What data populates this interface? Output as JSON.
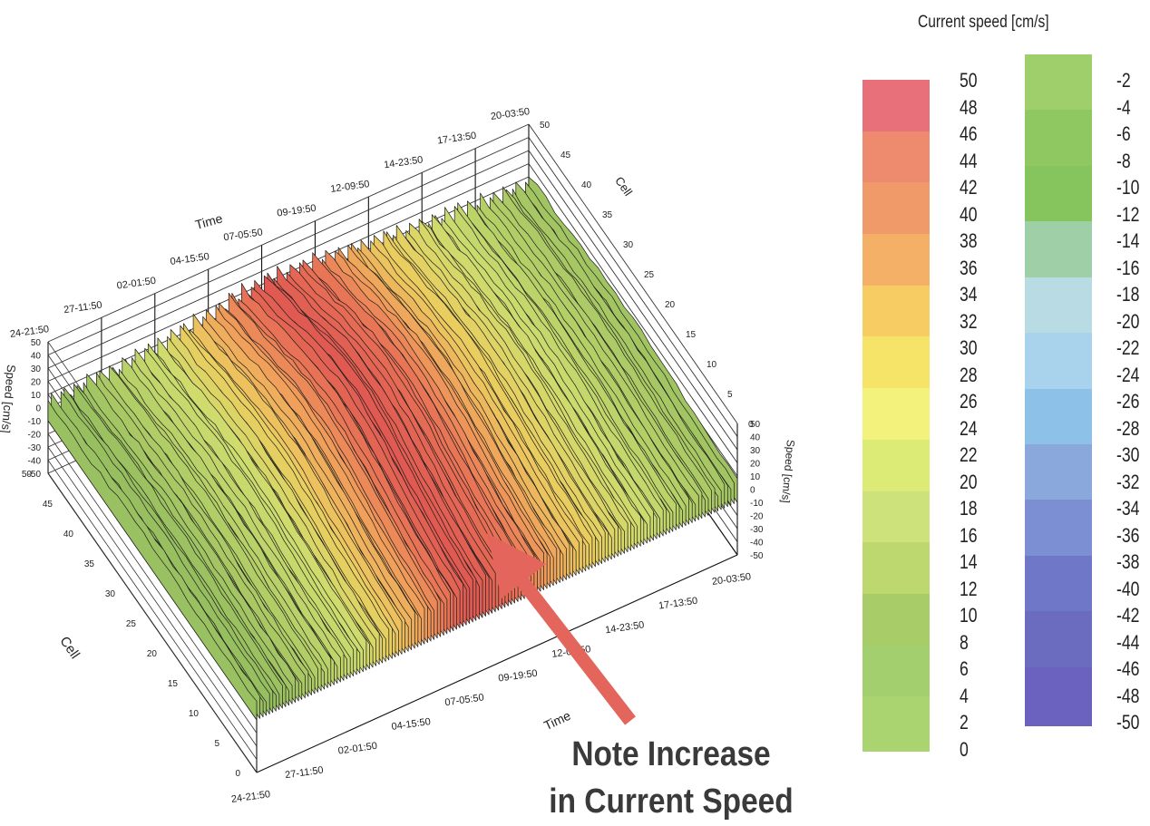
{
  "chart_data": {
    "type": "3d-surface",
    "title": "",
    "x_axis": {
      "label": "Time",
      "ticks": [
        "24-21:50",
        "27-11:50",
        "02-01:50",
        "04-15:50",
        "07-05:50",
        "09-19:50",
        "12-09:50",
        "14-23:50",
        "17-13:50",
        "20-03:50"
      ]
    },
    "y_axis": {
      "label": "Cell",
      "ticks": [
        "0",
        "5",
        "10",
        "15",
        "20",
        "25",
        "30",
        "35",
        "40",
        "45",
        "50"
      ]
    },
    "z_axis": {
      "label": "Speed [cm/s]",
      "ticks": [
        "-50",
        "-40",
        "-30",
        "-20",
        "-10",
        "0",
        "10",
        "20",
        "30",
        "40",
        "50"
      ],
      "range": [
        -50,
        50
      ]
    },
    "surface_profile": {
      "time_index": [
        "24-21:50",
        "27-11:50",
        "02-01:50",
        "04-15:50",
        "07-05:50",
        "09-19:50",
        "12-09:50",
        "14-23:50",
        "17-13:50",
        "20-03:50"
      ],
      "peak_speed": [
        8,
        14,
        20,
        34,
        48,
        42,
        30,
        22,
        16,
        12
      ]
    },
    "colorbar": {
      "title": "Current speed [cm/s]",
      "positive_ticks": [
        "50",
        "48",
        "46",
        "44",
        "42",
        "40",
        "38",
        "36",
        "34",
        "32",
        "30",
        "28",
        "26",
        "24",
        "22",
        "20",
        "18",
        "16",
        "14",
        "12",
        "10",
        "8",
        "6",
        "4",
        "2",
        "0"
      ],
      "negative_ticks": [
        "-2",
        "-4",
        "-6",
        "-8",
        "-10",
        "-12",
        "-14",
        "-16",
        "-18",
        "-20",
        "-22",
        "-24",
        "-26",
        "-28",
        "-30",
        "-32",
        "-34",
        "-36",
        "-38",
        "-40",
        "-42",
        "-44",
        "-46",
        "-48",
        "-50"
      ],
      "positive_colors": [
        "#e8707a",
        "#ee8a6e",
        "#f09a6a",
        "#f3b066",
        "#f7cc63",
        "#f6e468",
        "#f3f27c",
        "#dcea76",
        "#cde27a",
        "#bcd86f",
        "#a8cc68",
        "#a4cf6e",
        "#a9d46f"
      ],
      "negative_colors": [
        "#9fcf6a",
        "#8fc861",
        "#86c45e",
        "#9fcfa6",
        "#b8dbe4",
        "#a9d3ec",
        "#8ec1e8",
        "#8aa8dc",
        "#7b8fd2",
        "#6f77c8",
        "#6b6cc0",
        "#6a62be"
      ]
    },
    "annotation": "Note Increase in Current Speed"
  }
}
